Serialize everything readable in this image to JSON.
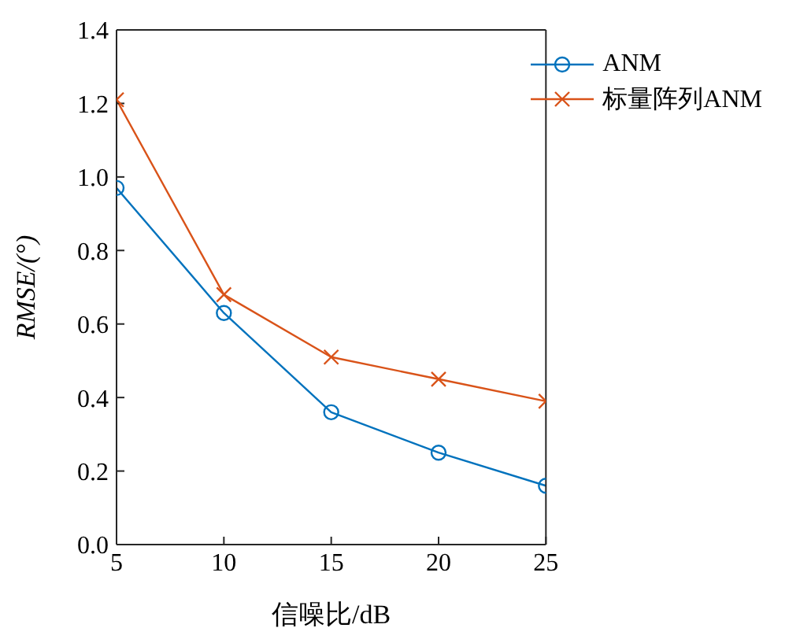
{
  "chart_data": {
    "type": "line",
    "xlabel": "信噪比/dB",
    "ylabel": "RMSE/(°)",
    "x": [
      5,
      10,
      15,
      20,
      25
    ],
    "series": [
      {
        "name": "ANM",
        "color": "#0072bd",
        "marker": "circle",
        "values": [
          0.97,
          0.63,
          0.36,
          0.25,
          0.16
        ]
      },
      {
        "name": "标量阵列ANM",
        "color": "#d95319",
        "marker": "cross",
        "values": [
          1.21,
          0.68,
          0.51,
          0.45,
          0.39
        ]
      }
    ],
    "xlim": [
      5,
      25
    ],
    "xticks": [
      5,
      10,
      15,
      20,
      25
    ],
    "ylim": [
      0,
      1.4
    ],
    "yticks": [
      {
        "value": 0,
        "label": "0.0"
      },
      0.2,
      0.4,
      0.6,
      0.8,
      {
        "value": 1,
        "label": "1.0"
      },
      1.2,
      1.4
    ],
    "grid": false,
    "legend": "top right",
    "line_style": "solid"
  }
}
